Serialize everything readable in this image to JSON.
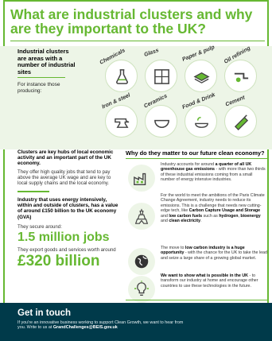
{
  "title": {
    "line1": "What are industrial clusters and why",
    "line2": "are they important to the UK?"
  },
  "clusters": {
    "intro": "Industrial clusters are areas with a number of industrial sites",
    "note": "For instance those producing:",
    "items": [
      {
        "label": "Chemicals",
        "icon": "chemicals-flask-icon"
      },
      {
        "label": "Glass",
        "icon": "glass-panes-icon"
      },
      {
        "label": "Paper & pulp",
        "icon": "paper-stack-icon"
      },
      {
        "label": "Oil refining",
        "icon": "oil-pipeline-icon"
      },
      {
        "label": "Iron & steel",
        "icon": "anvil-icon"
      },
      {
        "label": "Ceramics",
        "icon": "ceramic-bowl-icon"
      },
      {
        "label": "Food & Drink",
        "icon": "food-drink-icon"
      },
      {
        "label": "Cement",
        "icon": "cement-trowel-icon"
      }
    ]
  },
  "left": {
    "heading1": "Clusters are key hubs of local economic activity and an important part of the UK economy.",
    "text1": "They offer high quality jobs that tend to pay above the average UK wage and are key to local supply chains and the local economy.",
    "heading2": "Industry that uses energy intensively, within and outside of clusters, has a value of around £150 billion to the UK economy (GVA)",
    "secure_label": "They secure around:",
    "jobs": "1.5 million jobs",
    "export_label": "They export goods and services worth around",
    "export_value": "£320 billion"
  },
  "right": {
    "heading": "Why do they matter to our future clean economy?",
    "rows": [
      {
        "icon": "factory-icon",
        "pre": "Industry accounts for around ",
        "bold": "a quarter of all UK greenhouse gas emissions",
        "post": " - with more than two thirds of these industrial emissions coming from a small number of energy intensive industries."
      },
      {
        "icon": "eiffel-tower-icon",
        "pre": "For the world to meet the ambitions of the Paris Climate Change Agreement, industry needs to reduce its emissions. This is a challenge that needs new cutting-edge tech, like ",
        "bold": "Carbon Capture Usage and Storage",
        "mid": " and ",
        "bold2": "low carbon fuels",
        "mid2": " such as ",
        "bold3": "hydrogen",
        "mid3": ", ",
        "bold4": "bioenergy",
        "mid4": " and ",
        "bold5": "clean electricity",
        "post": "."
      },
      {
        "icon": "globe-icon",
        "pre": "The move to ",
        "bold": "low carbon industry is a huge opportunity",
        "post": " - with the chance for the UK to take the lead and seize a large share of a growing global market."
      },
      {
        "icon": "lightbulb-icon",
        "pre": "",
        "bold": "We want to show what is possible in the UK",
        "post": " - to transform our industry at home and encourage other countries to use these technologies in the future."
      }
    ]
  },
  "footer": {
    "title": "Get in touch",
    "text": "If you're an innovative business working to support Clean Growth, we want to hear from you. Write to us at ",
    "email": "GrandChallenges@BEIS.gov.uk"
  },
  "colors": {
    "accent": "#66b832",
    "band": "#edf5e7",
    "footer": "#003a4a"
  }
}
